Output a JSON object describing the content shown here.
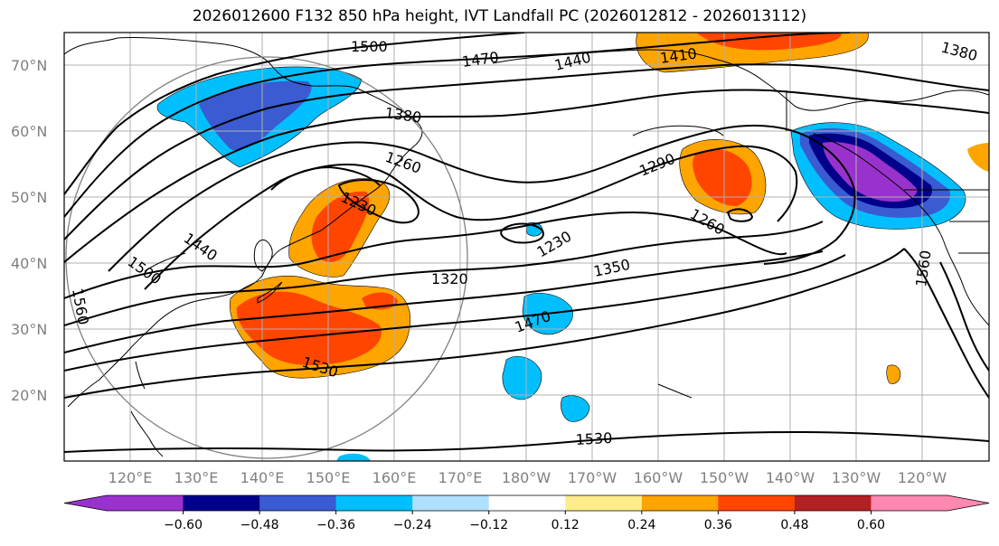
{
  "title": "2026012600 F132 850 hPa height, IVT Landfall PC (2026012812 - 2026013112)",
  "lat_labels": [
    "70°N",
    "60°N",
    "50°N",
    "40°N",
    "30°N",
    "20°N"
  ],
  "lon_labels": [
    "120°E",
    "130°E",
    "140°E",
    "150°E",
    "160°E",
    "170°E",
    "180°W",
    "170°W",
    "160°W",
    "150°W",
    "140°W",
    "130°W",
    "120°W"
  ],
  "contour_labels": [
    "1500",
    "1470",
    "1440",
    "1410",
    "1380",
    "1380",
    "1260",
    "1290",
    "1230",
    "1260",
    "1230",
    "1440",
    "1500",
    "1320",
    "1350",
    "1560",
    "1470",
    "1560",
    "1530",
    "1530"
  ],
  "colorbar": {
    "colors": [
      "#9932cc",
      "#00008b",
      "#3a5bd1",
      "#00bfff",
      "#b0e0ff",
      "#ffffff",
      "#ffec8b",
      "#ffa500",
      "#ff4500",
      "#b22222",
      "#ff88b0"
    ],
    "labels": [
      "−0.60",
      "−0.48",
      "−0.36",
      "−0.24",
      "−0.12",
      "0.12",
      "0.24",
      "0.36",
      "0.48",
      "0.60"
    ]
  }
}
